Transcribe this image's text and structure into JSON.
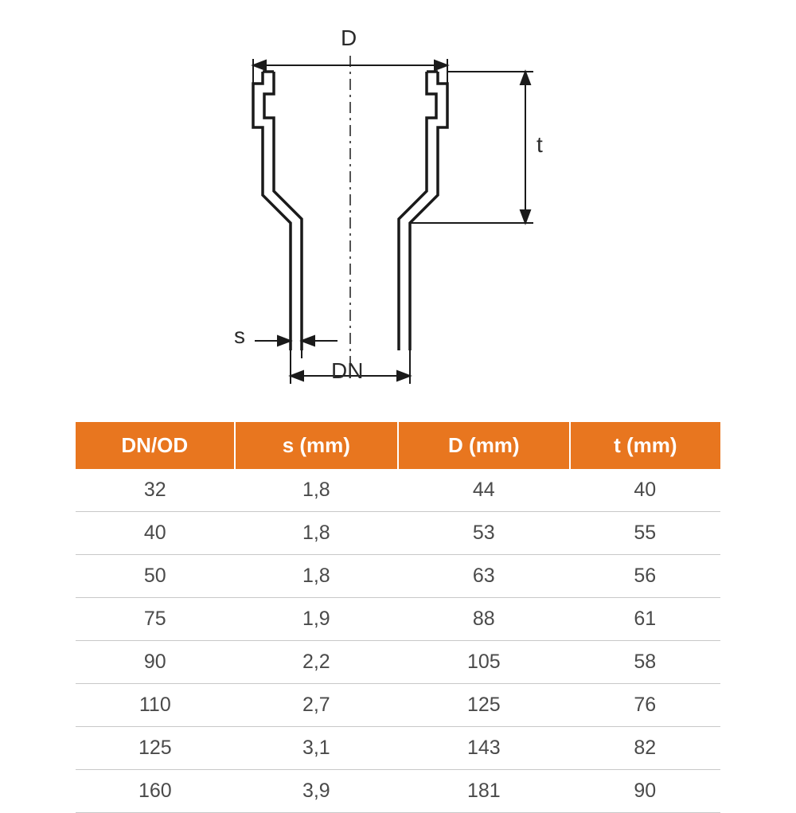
{
  "diagram": {
    "labels": {
      "D": "D",
      "t": "t",
      "s": "s",
      "DN": "DN"
    },
    "colors": {
      "stroke": "#1a1a1a",
      "label": "#2a2a2a",
      "centerline": "#1a1a1a"
    },
    "stroke_width_outer": 3,
    "stroke_width_dim": 2,
    "dash_pattern": "12 6 3 6"
  },
  "table": {
    "header_bg": "#e8761f",
    "header_color": "#ffffff",
    "row_border": "#c8c8c8",
    "cell_color": "#4a4a4a",
    "columns": [
      "DN/OD",
      "s (mm)",
      "D (mm)",
      "t (mm)"
    ],
    "rows": [
      [
        "32",
        "1,8",
        "44",
        "40"
      ],
      [
        "40",
        "1,8",
        "53",
        "55"
      ],
      [
        "50",
        "1,8",
        "63",
        "56"
      ],
      [
        "75",
        "1,9",
        "88",
        "61"
      ],
      [
        "90",
        "2,2",
        "105",
        "58"
      ],
      [
        "110",
        "2,7",
        "125",
        "76"
      ],
      [
        "125",
        "3,1",
        "143",
        "82"
      ],
      [
        "160",
        "3,9",
        "181",
        "90"
      ]
    ]
  }
}
